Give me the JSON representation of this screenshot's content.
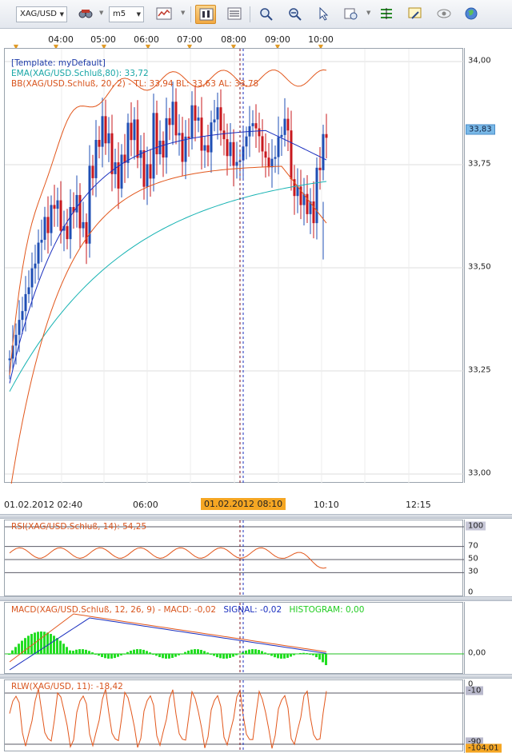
{
  "toolbar": {
    "symbol": "XAG/USD",
    "timeframe": "m5",
    "buttons": [
      "chart-type-icon",
      "candles-icon",
      "indicator-list-icon",
      "zoom-in-icon",
      "zoom-out-icon",
      "cursor-icon",
      "study-icon",
      "fibo-icon",
      "alert-icon",
      "eye-icon",
      "globe-icon"
    ]
  },
  "time_axis_top": [
    "04:00",
    "05:00",
    "06:00",
    "07:00",
    "08:00",
    "09:00",
    "10:00"
  ],
  "time_axis_bottom": {
    "labels": [
      "01.02.2012 02:40",
      "06:00",
      "10:10",
      "12:15"
    ],
    "cursor": "01.02.2012 08:10"
  },
  "price_panel": {
    "template": "[Template: myDefault]",
    "ema_label": "EMA(XAG/USD.Schluß,80): 33,72",
    "bb_label": "BB(XAG/USD.Schluß, 20, 2) -  TL: 33,94  BL: 33,63  AL: 33,78",
    "y_ticks": [
      "34,00",
      "33,75",
      "33,50",
      "33,25",
      "33,00"
    ],
    "current_price": "33,83"
  },
  "rsi_panel": {
    "label": "RSI(XAG/USD.Schluß, 14): 54,25",
    "y_ticks": [
      "100",
      "70",
      "50",
      "30",
      "0"
    ]
  },
  "macd_panel": {
    "label_main": "MACD(XAG/USD.Schluß, 12, 26, 9) -  MACD: -0,02",
    "label_signal": "SIGNAL: -0,02",
    "label_hist": "HISTOGRAM: 0,00",
    "y_tick": "0,00"
  },
  "wr_panel": {
    "label": "RLW(XAG/USD, 11): -18,42",
    "y_ticks": [
      "0",
      "-10",
      "-90"
    ],
    "current": "-104,01"
  },
  "colors": {
    "up": "#1f4fb5",
    "down": "#c8181e",
    "ema": "#17b3b3",
    "bb": "#e2571c",
    "bb_mid": "#1a2fbf",
    "hist": "#22dd22",
    "accent": "#f5a623"
  }
}
